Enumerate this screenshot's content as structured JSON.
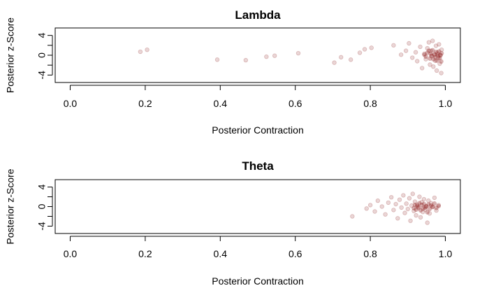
{
  "chart_data": [
    {
      "type": "scatter",
      "title": "Lambda",
      "xlabel": "Posterior Contraction",
      "ylabel": "Posterior z-Score",
      "xlim": [
        -0.04,
        1.04
      ],
      "ylim": [
        -5.5,
        5.5
      ],
      "xticks": [
        0.0,
        0.2,
        0.4,
        0.6,
        0.8,
        1.0
      ],
      "xtick_labels": [
        "0.0",
        "0.2",
        "0.4",
        "0.6",
        "0.8",
        "1.0"
      ],
      "yticks": [
        -4,
        0,
        4
      ],
      "ytick_labels": [
        "-4",
        "0",
        "4"
      ],
      "grid": false,
      "legend": "none",
      "point_color": "#8b1a1a",
      "points": [
        {
          "x": 0.187,
          "y": 0.7
        },
        {
          "x": 0.205,
          "y": 1.1
        },
        {
          "x": 0.392,
          "y": -0.9
        },
        {
          "x": 0.468,
          "y": -1.0
        },
        {
          "x": 0.523,
          "y": -0.3
        },
        {
          "x": 0.545,
          "y": -0.1
        },
        {
          "x": 0.608,
          "y": 0.4
        },
        {
          "x": 0.704,
          "y": -1.5
        },
        {
          "x": 0.722,
          "y": -0.4
        },
        {
          "x": 0.748,
          "y": -0.9
        },
        {
          "x": 0.772,
          "y": 0.5
        },
        {
          "x": 0.785,
          "y": 1.2
        },
        {
          "x": 0.803,
          "y": 1.5
        },
        {
          "x": 0.862,
          "y": 2.0
        },
        {
          "x": 0.882,
          "y": 0.1
        },
        {
          "x": 0.895,
          "y": 0.9
        },
        {
          "x": 0.903,
          "y": 2.4
        },
        {
          "x": 0.912,
          "y": -0.5
        },
        {
          "x": 0.921,
          "y": 0.6
        },
        {
          "x": 0.925,
          "y": -1.2
        },
        {
          "x": 0.933,
          "y": 1.7
        },
        {
          "x": 0.938,
          "y": -2.6
        },
        {
          "x": 0.944,
          "y": 0.3
        },
        {
          "x": 0.948,
          "y": -0.8
        },
        {
          "x": 0.952,
          "y": 1.4
        },
        {
          "x": 0.956,
          "y": 2.6
        },
        {
          "x": 0.959,
          "y": -1.9
        },
        {
          "x": 0.961,
          "y": 0.9
        },
        {
          "x": 0.963,
          "y": -0.2
        },
        {
          "x": 0.966,
          "y": 2.9
        },
        {
          "x": 0.968,
          "y": -2.3
        },
        {
          "x": 0.971,
          "y": 0.2
        },
        {
          "x": 0.973,
          "y": -1.1
        },
        {
          "x": 0.975,
          "y": 1.9
        },
        {
          "x": 0.977,
          "y": -3.1
        },
        {
          "x": 0.979,
          "y": 0.5
        },
        {
          "x": 0.981,
          "y": -0.6
        },
        {
          "x": 0.983,
          "y": 2.2
        },
        {
          "x": 0.985,
          "y": -1.7
        },
        {
          "x": 0.987,
          "y": 0.0
        },
        {
          "x": 0.989,
          "y": -3.6
        },
        {
          "x": 0.99,
          "y": 1.1
        }
      ]
    },
    {
      "type": "scatter",
      "title": "Theta",
      "xlabel": "Posterior Contraction",
      "ylabel": "Posterior z-Score",
      "xlim": [
        -0.04,
        1.04
      ],
      "ylim": [
        -5.5,
        5.5
      ],
      "xticks": [
        0.0,
        0.2,
        0.4,
        0.6,
        0.8,
        1.0
      ],
      "xtick_labels": [
        "0.0",
        "0.2",
        "0.4",
        "0.6",
        "0.8",
        "1.0"
      ],
      "yticks": [
        -4,
        0,
        4
      ],
      "ytick_labels": [
        "-4",
        "0",
        "4"
      ],
      "grid": false,
      "legend": "none",
      "point_color": "#8b1a1a",
      "points": [
        {
          "x": 0.752,
          "y": -2.0
        },
        {
          "x": 0.79,
          "y": -0.4
        },
        {
          "x": 0.8,
          "y": 0.3
        },
        {
          "x": 0.812,
          "y": -1.0
        },
        {
          "x": 0.82,
          "y": 1.2
        },
        {
          "x": 0.831,
          "y": 0.0
        },
        {
          "x": 0.84,
          "y": -1.6
        },
        {
          "x": 0.848,
          "y": 0.8
        },
        {
          "x": 0.856,
          "y": 1.9
        },
        {
          "x": 0.862,
          "y": -0.7
        },
        {
          "x": 0.868,
          "y": 0.5
        },
        {
          "x": 0.873,
          "y": -2.4
        },
        {
          "x": 0.878,
          "y": 1.4
        },
        {
          "x": 0.883,
          "y": -0.2
        },
        {
          "x": 0.888,
          "y": 2.3
        },
        {
          "x": 0.892,
          "y": -1.3
        },
        {
          "x": 0.896,
          "y": 0.6
        },
        {
          "x": 0.9,
          "y": -0.5
        },
        {
          "x": 0.904,
          "y": 1.7
        },
        {
          "x": 0.907,
          "y": -2.9
        },
        {
          "x": 0.91,
          "y": 0.2
        },
        {
          "x": 0.913,
          "y": 2.6
        },
        {
          "x": 0.916,
          "y": -0.9
        },
        {
          "x": 0.919,
          "y": 1.0
        },
        {
          "x": 0.922,
          "y": -1.8
        },
        {
          "x": 0.925,
          "y": 0.4
        },
        {
          "x": 0.928,
          "y": -0.3
        },
        {
          "x": 0.931,
          "y": 2.0
        },
        {
          "x": 0.934,
          "y": -2.2
        },
        {
          "x": 0.937,
          "y": 0.9
        },
        {
          "x": 0.94,
          "y": -1.1
        },
        {
          "x": 0.943,
          "y": 1.5
        },
        {
          "x": 0.946,
          "y": -0.6
        },
        {
          "x": 0.949,
          "y": 0.1
        },
        {
          "x": 0.952,
          "y": -3.3
        },
        {
          "x": 0.955,
          "y": 1.2
        },
        {
          "x": 0.958,
          "y": -1.4
        },
        {
          "x": 0.962,
          "y": 0.7
        },
        {
          "x": 0.966,
          "y": -0.1
        },
        {
          "x": 0.971,
          "y": 1.8
        },
        {
          "x": 0.976,
          "y": -0.8
        },
        {
          "x": 0.982,
          "y": 0.3
        }
      ]
    }
  ]
}
